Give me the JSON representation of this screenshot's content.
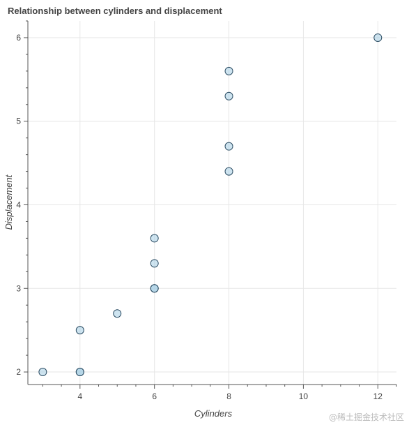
{
  "chart_data": {
    "type": "scatter",
    "title": "Relationship between cylinders and displacement",
    "xlabel": "Cylinders",
    "ylabel": "Displacement",
    "xlim": [
      2.6,
      12.5
    ],
    "ylim": [
      1.85,
      6.2
    ],
    "xticks": [
      4,
      6,
      8,
      10,
      12
    ],
    "yticks": [
      2,
      3,
      4,
      5,
      6
    ],
    "grid": true,
    "marker_fill": "#a6cee3",
    "marker_stroke": "#2b4c63",
    "points": [
      {
        "x": 3,
        "y": 2.0
      },
      {
        "x": 4,
        "y": 2.0
      },
      {
        "x": 4,
        "y": 2.0
      },
      {
        "x": 4,
        "y": 2.5
      },
      {
        "x": 5,
        "y": 2.7
      },
      {
        "x": 6,
        "y": 3.0
      },
      {
        "x": 6,
        "y": 3.0
      },
      {
        "x": 6,
        "y": 3.3
      },
      {
        "x": 6,
        "y": 3.6
      },
      {
        "x": 8,
        "y": 4.4
      },
      {
        "x": 8,
        "y": 4.7
      },
      {
        "x": 8,
        "y": 5.3
      },
      {
        "x": 8,
        "y": 5.6
      },
      {
        "x": 12,
        "y": 6.0
      }
    ]
  },
  "watermark": "@稀土掘金技术社区"
}
